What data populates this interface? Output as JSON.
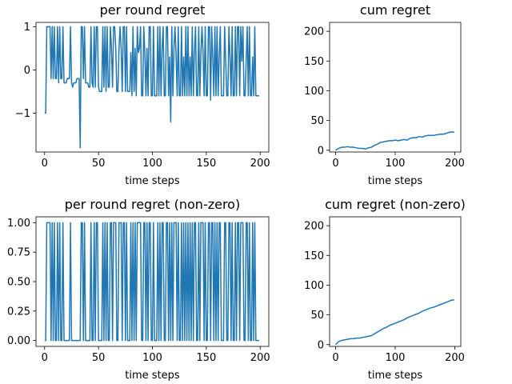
{
  "figure": {
    "line_color": "#1f77b4"
  },
  "chart_data": [
    {
      "type": "line",
      "title": "per round regret",
      "xlabel": "time steps",
      "ylabel": "",
      "xlim": [
        -8,
        208
      ],
      "ylim": [
        -1.9,
        1.1
      ],
      "xticks": [
        0,
        50,
        100,
        150,
        200
      ],
      "yticks": [
        -1,
        0,
        1
      ],
      "ytick_labels": [
        "−1",
        "0",
        "1"
      ],
      "grid": false,
      "series": [
        {
          "x": [
            0,
            1,
            2,
            3,
            4,
            5,
            6,
            7,
            8,
            9,
            10,
            11,
            12,
            13,
            14,
            15,
            16,
            17,
            18,
            19,
            20,
            21,
            22,
            23,
            24,
            25,
            26,
            27,
            28,
            29,
            30,
            31,
            32,
            33,
            34,
            35,
            36,
            37,
            38,
            39,
            40,
            41,
            42,
            43,
            44,
            45,
            46,
            47,
            48,
            49,
            50,
            51,
            52,
            53,
            54,
            55,
            56,
            57,
            58,
            59,
            60,
            61,
            62,
            63,
            64,
            65,
            66,
            67,
            68,
            69,
            70,
            71,
            72,
            73,
            74,
            75,
            76,
            77,
            78,
            79,
            80,
            81,
            82,
            83,
            84,
            85,
            86,
            87,
            88,
            89,
            90,
            91,
            92,
            93,
            94,
            95,
            96,
            97,
            98,
            99,
            100,
            101,
            102,
            103,
            104,
            105,
            106,
            107,
            108,
            109,
            110,
            111,
            112,
            113,
            114,
            115,
            116,
            117,
            118,
            119,
            120,
            121,
            122,
            123,
            124,
            125,
            126,
            127,
            128,
            129,
            130,
            131,
            132,
            133,
            134,
            135,
            136,
            137,
            138,
            139,
            140,
            141,
            142,
            143,
            144,
            145,
            146,
            147,
            148,
            149,
            150,
            151,
            152,
            153,
            154,
            155,
            156,
            157,
            158,
            159,
            160,
            161,
            162,
            163,
            164,
            165,
            166,
            167,
            168,
            169,
            170,
            171,
            172,
            173,
            174,
            175,
            176,
            177,
            178,
            179,
            180,
            181,
            182,
            183,
            184,
            185,
            186,
            187,
            188,
            189,
            190,
            191,
            192,
            193,
            194,
            195,
            196,
            197,
            198,
            199
          ],
          "values": [
            -1,
            -1,
            1,
            1,
            1,
            1,
            -0.2,
            1,
            -0.2,
            1,
            -0.2,
            -0.2,
            1,
            -0.3,
            1,
            -0.2,
            -0.2,
            1,
            -0.3,
            -0.3,
            -0.3,
            -0.2,
            -0.2,
            -0.2,
            1,
            -0.3,
            -0.4,
            -0.3,
            -0.3,
            -0.3,
            -0.2,
            -0.2,
            -0.2,
            -1.8,
            1,
            1,
            -0.2,
            1,
            -0.3,
            -0.3,
            -0.3,
            -0.4,
            -0.4,
            1,
            -0.3,
            -0.4,
            1,
            -0.4,
            1,
            1,
            -0.4,
            -0.5,
            -0.5,
            -0.5,
            1,
            -0.4,
            1,
            -0.5,
            1,
            -0.4,
            -0.4,
            1,
            0.5,
            -0.4,
            1,
            1,
            0.5,
            -0.5,
            -0.5,
            0.5,
            1,
            0.5,
            -0.5,
            1,
            1,
            -0.5,
            1,
            -0.5,
            -0.5,
            -0.5,
            0.4,
            -0.6,
            1,
            -0.5,
            0.5,
            -0.6,
            1,
            0.4,
            0.5,
            1,
            -0.6,
            -0.6,
            1,
            0.4,
            -0.6,
            0.5,
            -0.6,
            1,
            1,
            -0.6,
            -0.6,
            1,
            -0.6,
            -0.6,
            -0.6,
            1,
            -0.6,
            1,
            -0.6,
            0.5,
            1,
            -0.6,
            -0.6,
            1,
            1,
            -0.6,
            0.3,
            -1.2,
            1,
            -0.6,
            0.5,
            1,
            0.3,
            -0.6,
            1,
            -0.6,
            -0.6,
            1,
            -0.6,
            0.3,
            -0.6,
            1,
            -0.6,
            1,
            -0.6,
            0.3,
            -0.6,
            1,
            -0.6,
            0.4,
            1,
            -0.6,
            -0.6,
            1,
            -0.6,
            0.4,
            1,
            0.4,
            -0.6,
            1,
            -0.6,
            -0.6,
            1,
            1,
            -0.7,
            1,
            0.3,
            -0.6,
            1,
            -0.6,
            1,
            -0.6,
            0.3,
            1,
            -0.6,
            -0.6,
            -0.6,
            1,
            0.2,
            -0.6,
            -0.6,
            1,
            0.3,
            -0.6,
            1,
            -0.6,
            -0.6,
            1,
            -0.6,
            1,
            1,
            -0.6,
            1,
            0.2,
            1,
            -0.6,
            -0.6,
            0.2,
            1,
            -0.6,
            1,
            -0.6,
            -0.6,
            0.3,
            -0.6,
            1,
            -0.6,
            -0.6,
            -0.6,
            -0.6
          ]
        }
      ]
    },
    {
      "type": "line",
      "title": "cum regret",
      "xlabel": "time steps",
      "ylabel": "",
      "xlim": [
        -10,
        210
      ],
      "ylim": [
        -3,
        215
      ],
      "xticks": [
        0,
        100,
        200
      ],
      "yticks": [
        0,
        50,
        100,
        150,
        200
      ],
      "grid": false,
      "series": [
        {
          "x": [
            0,
            5,
            10,
            15,
            20,
            25,
            30,
            35,
            40,
            45,
            50,
            55,
            60,
            65,
            70,
            75,
            80,
            85,
            90,
            95,
            100,
            105,
            110,
            115,
            120,
            125,
            130,
            135,
            140,
            145,
            150,
            155,
            160,
            165,
            170,
            175,
            180,
            185,
            190,
            195,
            199
          ],
          "values": [
            0,
            3,
            5,
            5,
            6,
            5,
            5,
            4,
            3,
            3,
            2,
            4,
            5,
            8,
            10,
            13,
            14,
            15,
            16,
            16,
            17,
            16,
            17,
            18,
            17,
            20,
            21,
            21,
            23,
            22,
            24,
            25,
            25,
            25,
            26,
            27,
            27,
            28,
            30,
            31,
            30
          ]
        }
      ]
    },
    {
      "type": "line",
      "title": "per round regret (non-zero)",
      "xlabel": "time steps",
      "ylabel": "",
      "xlim": [
        -8,
        208
      ],
      "ylim": [
        -0.05,
        1.05
      ],
      "xticks": [
        0,
        50,
        100,
        150,
        200
      ],
      "yticks": [
        0.0,
        0.25,
        0.5,
        0.75,
        1.0
      ],
      "ytick_labels": [
        "0.00",
        "0.25",
        "0.50",
        "0.75",
        "1.00"
      ],
      "grid": false,
      "series": [
        {
          "x": [
            0,
            1,
            2,
            3,
            4,
            5,
            6,
            7,
            8,
            9,
            10,
            11,
            12,
            13,
            14,
            15,
            16,
            17,
            18,
            19,
            20,
            21,
            22,
            23,
            24,
            25,
            26,
            27,
            28,
            29,
            30,
            31,
            32,
            33,
            34,
            35,
            36,
            37,
            38,
            39,
            40,
            41,
            42,
            43,
            44,
            45,
            46,
            47,
            48,
            49,
            50,
            51,
            52,
            53,
            54,
            55,
            56,
            57,
            58,
            59,
            60,
            61,
            62,
            63,
            64,
            65,
            66,
            67,
            68,
            69,
            70,
            71,
            72,
            73,
            74,
            75,
            76,
            77,
            78,
            79,
            80,
            81,
            82,
            83,
            84,
            85,
            86,
            87,
            88,
            89,
            90,
            91,
            92,
            93,
            94,
            95,
            96,
            97,
            98,
            99,
            100,
            101,
            102,
            103,
            104,
            105,
            106,
            107,
            108,
            109,
            110,
            111,
            112,
            113,
            114,
            115,
            116,
            117,
            118,
            119,
            120,
            121,
            122,
            123,
            124,
            125,
            126,
            127,
            128,
            129,
            130,
            131,
            132,
            133,
            134,
            135,
            136,
            137,
            138,
            139,
            140,
            141,
            142,
            143,
            144,
            145,
            146,
            147,
            148,
            149,
            150,
            151,
            152,
            153,
            154,
            155,
            156,
            157,
            158,
            159,
            160,
            161,
            162,
            163,
            164,
            165,
            166,
            167,
            168,
            169,
            170,
            171,
            172,
            173,
            174,
            175,
            176,
            177,
            178,
            179,
            180,
            181,
            182,
            183,
            184,
            185,
            186,
            187,
            188,
            189,
            190,
            191,
            192,
            193,
            194,
            195,
            196,
            197,
            198,
            199
          ],
          "values": [
            0,
            0,
            1,
            1,
            1,
            1,
            0,
            1,
            0,
            1,
            0,
            0,
            1,
            0,
            1,
            0,
            0,
            1,
            0,
            0,
            0,
            0,
            0,
            0,
            1,
            0,
            0,
            0,
            0,
            0,
            0,
            0,
            0,
            0,
            1,
            1,
            0,
            1,
            0,
            0,
            0,
            0,
            0,
            1,
            0,
            0,
            1,
            0,
            1,
            1,
            0,
            0,
            0,
            0,
            1,
            0,
            1,
            0,
            1,
            0,
            0,
            1,
            1,
            0,
            1,
            1,
            1,
            0,
            0,
            1,
            1,
            1,
            0,
            1,
            1,
            0,
            1,
            0,
            0,
            0,
            1,
            0,
            1,
            0,
            1,
            0,
            1,
            1,
            1,
            1,
            0,
            0,
            1,
            1,
            0,
            1,
            0,
            1,
            1,
            0,
            0,
            1,
            0,
            0,
            0,
            1,
            0,
            1,
            0,
            1,
            1,
            0,
            0,
            1,
            1,
            0,
            1,
            0,
            1,
            0,
            1,
            1,
            1,
            0,
            1,
            0,
            0,
            1,
            0,
            1,
            0,
            1,
            0,
            1,
            0,
            1,
            0,
            1,
            0,
            1,
            1,
            0,
            0,
            1,
            0,
            1,
            1,
            1,
            0,
            1,
            0,
            0,
            1,
            1,
            0,
            1,
            1,
            0,
            1,
            0,
            1,
            0,
            1,
            1,
            0,
            0,
            0,
            1,
            1,
            0,
            0,
            1,
            1,
            0,
            1,
            0,
            0,
            1,
            0,
            1,
            1,
            0,
            1,
            1,
            1,
            0,
            0,
            1,
            1,
            0,
            1,
            0,
            0,
            1,
            0,
            1,
            0,
            0,
            0,
            0
          ]
        }
      ]
    },
    {
      "type": "line",
      "title": "cum regret (non-zero)",
      "xlabel": "time steps",
      "ylabel": "",
      "xlim": [
        -10,
        210
      ],
      "ylim": [
        -3,
        215
      ],
      "xticks": [
        0,
        100,
        200
      ],
      "yticks": [
        0,
        50,
        100,
        150,
        200
      ],
      "grid": false,
      "series": [
        {
          "x": [
            0,
            5,
            10,
            15,
            20,
            25,
            30,
            35,
            40,
            45,
            50,
            55,
            60,
            65,
            70,
            75,
            80,
            85,
            90,
            95,
            100,
            105,
            110,
            115,
            120,
            125,
            130,
            135,
            140,
            145,
            150,
            155,
            160,
            165,
            170,
            175,
            180,
            185,
            190,
            195,
            199
          ],
          "values": [
            0,
            5,
            7,
            8,
            9,
            10,
            10,
            11,
            11,
            12,
            13,
            14,
            15,
            18,
            21,
            24,
            27,
            29,
            32,
            34,
            36,
            38,
            40,
            42,
            45,
            47,
            49,
            51,
            53,
            56,
            58,
            60,
            62,
            63,
            65,
            67,
            69,
            71,
            73,
            75,
            75
          ]
        }
      ]
    }
  ]
}
